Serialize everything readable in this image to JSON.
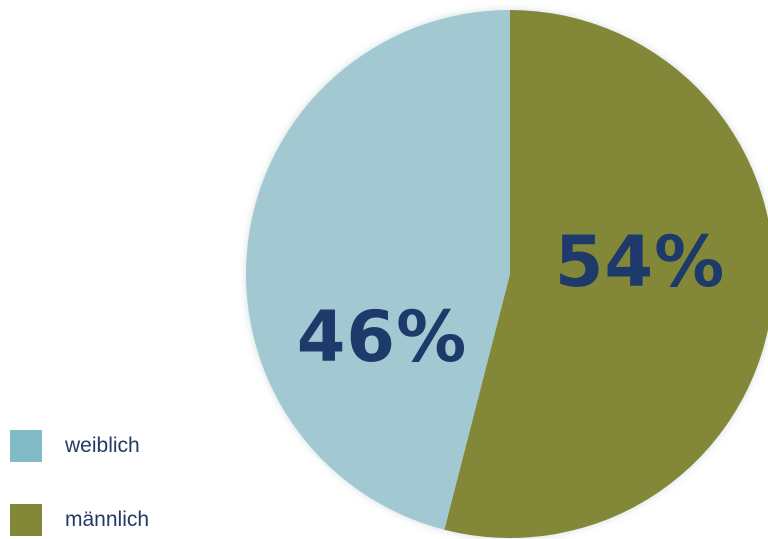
{
  "chart_data": {
    "type": "pie",
    "slices": [
      {
        "label": "weiblich",
        "value": 46,
        "value_label": "46%",
        "color": "#a2c9d1",
        "legend_color": "#80bbc6"
      },
      {
        "label": "männlich",
        "value": 54,
        "value_label": "54%",
        "color": "#838838",
        "legend_color": "#838838"
      }
    ],
    "value_label_color": "#1d3a6a",
    "start_angle_deg": 0,
    "direction": "clockwise",
    "legend_position": "bottom-left"
  }
}
